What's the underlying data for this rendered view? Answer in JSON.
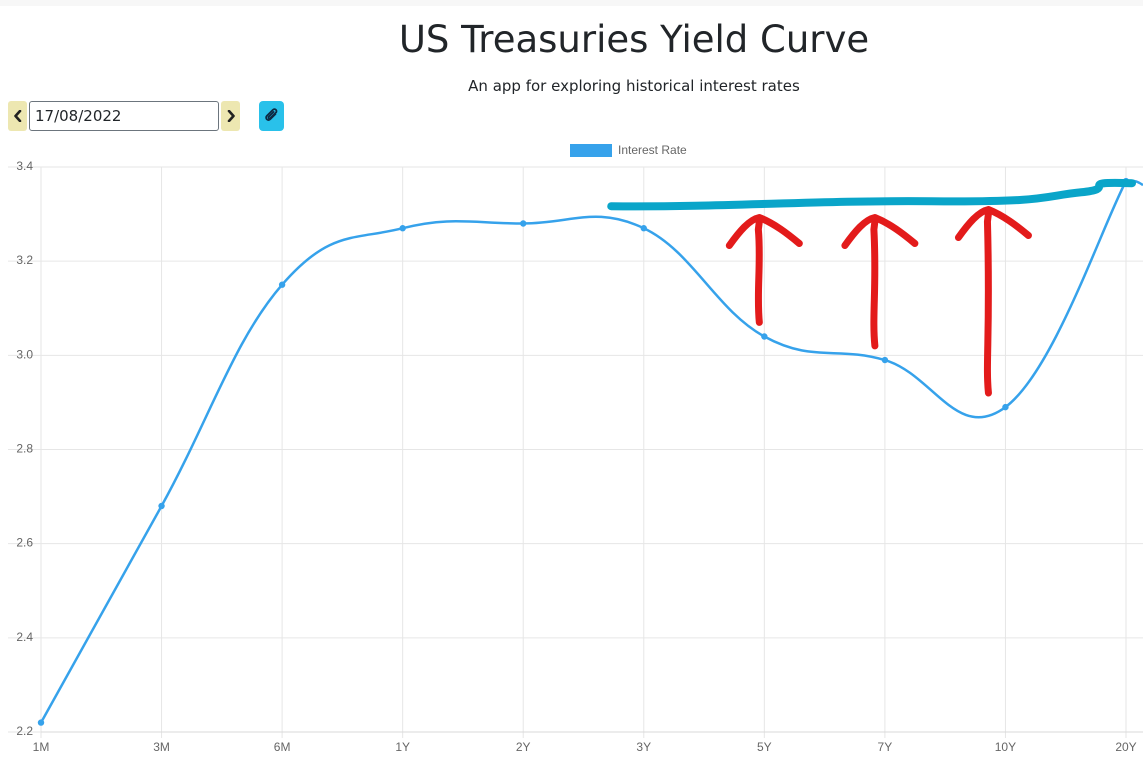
{
  "header": {
    "title": "US Treasuries Yield Curve",
    "subtitle": "An app for exploring historical interest rates"
  },
  "controls": {
    "date_value": "17/08/2022",
    "prev_icon": "chevron-left-icon",
    "next_icon": "chevron-right-icon",
    "attach_icon": "paperclip-icon"
  },
  "colors": {
    "series": "#36a2eb",
    "annotation_line": "#0aa5c9",
    "annotation_arrows": "#e31b1b",
    "nav_button": "#ede7b1",
    "attach_button": "#29c1ea"
  },
  "chart_data": {
    "type": "line",
    "categories": [
      "1M",
      "3M",
      "6M",
      "1Y",
      "2Y",
      "3Y",
      "5Y",
      "7Y",
      "10Y",
      "20Y"
    ],
    "series": [
      {
        "name": "Interest Rate",
        "values": [
          2.22,
          2.68,
          3.15,
          3.27,
          3.28,
          3.27,
          3.04,
          2.99,
          2.89,
          3.37
        ]
      }
    ],
    "title": "",
    "xlabel": "",
    "ylabel": "",
    "ylim": [
      2.2,
      3.4
    ],
    "yticks": [
      "2.2",
      "2.4",
      "2.6",
      "2.8",
      "3.0",
      "3.2",
      "3.4"
    ],
    "grid": true,
    "legend": "top-center",
    "curve": "smoothed",
    "annotations": [
      {
        "type": "hand-drawn-line",
        "color": "#0aa5c9",
        "from": "2Y",
        "to": "20Y",
        "level": 3.34
      },
      {
        "type": "hand-drawn-arrow",
        "color": "#e31b1b",
        "at": "5Y",
        "direction": "up"
      },
      {
        "type": "hand-drawn-arrow",
        "color": "#e31b1b",
        "at": "7Y",
        "direction": "up"
      },
      {
        "type": "hand-drawn-arrow",
        "color": "#e31b1b",
        "at": "10Y",
        "direction": "up"
      }
    ]
  }
}
